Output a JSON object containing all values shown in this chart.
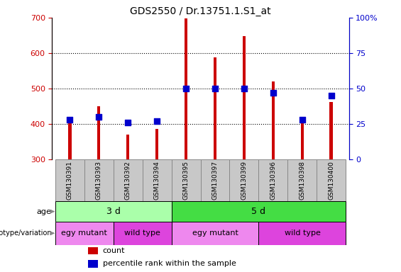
{
  "title": "GDS2550 / Dr.13751.1.S1_at",
  "samples": [
    "GSM130391",
    "GSM130393",
    "GSM130392",
    "GSM130394",
    "GSM130395",
    "GSM130397",
    "GSM130399",
    "GSM130396",
    "GSM130398",
    "GSM130400"
  ],
  "counts": [
    410,
    450,
    370,
    385,
    697,
    588,
    648,
    520,
    415,
    462
  ],
  "percentile_ranks": [
    28,
    30,
    26,
    27,
    50,
    50,
    50,
    47,
    28,
    45
  ],
  "count_baseline": 300,
  "ylim_left": [
    300,
    700
  ],
  "ylim_right": [
    0,
    100
  ],
  "yticks_left": [
    300,
    400,
    500,
    600,
    700
  ],
  "yticks_right": [
    0,
    25,
    50,
    75,
    100
  ],
  "ytick_labels_right": [
    "0",
    "25",
    "50",
    "75",
    "100%"
  ],
  "bar_color": "#cc0000",
  "dot_color": "#0000cc",
  "bar_width": 0.12,
  "dot_size": 28,
  "age_groups": [
    {
      "label": "3 d",
      "start": 0,
      "end": 4,
      "color": "#aaffaa"
    },
    {
      "label": "5 d",
      "start": 4,
      "end": 10,
      "color": "#44dd44"
    }
  ],
  "genotype_groups": [
    {
      "label": "egy mutant",
      "start": 0,
      "end": 2,
      "color": "#ee88ee"
    },
    {
      "label": "wild type",
      "start": 2,
      "end": 4,
      "color": "#dd44dd"
    },
    {
      "label": "egy mutant",
      "start": 4,
      "end": 7,
      "color": "#ee88ee"
    },
    {
      "label": "wild type",
      "start": 7,
      "end": 10,
      "color": "#dd44dd"
    }
  ],
  "legend_items": [
    {
      "label": "count",
      "color": "#cc0000"
    },
    {
      "label": "percentile rank within the sample",
      "color": "#0000cc"
    }
  ],
  "tick_color_left": "#cc0000",
  "tick_color_right": "#0000cc",
  "grid_color": "#000000",
  "sample_box_color": "#c8c8c8",
  "sample_box_edge": "#888888"
}
